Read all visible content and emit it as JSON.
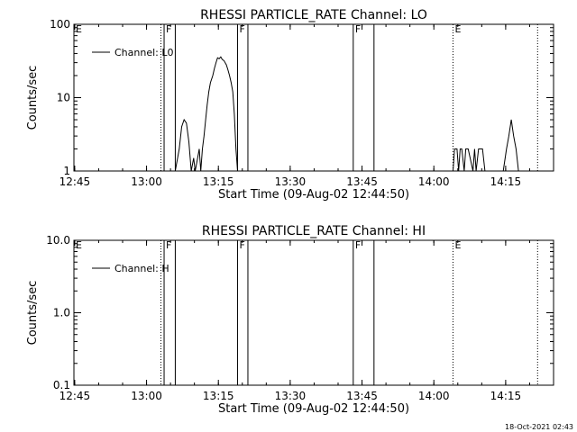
{
  "timestamp": "18-Oct-2021 02:43",
  "chart_data": [
    {
      "type": "line",
      "title": "RHESSI PARTICLE_RATE Channel: LO",
      "xlabel": "Start Time (09-Aug-02 12:44:50)",
      "ylabel": "Counts/sec",
      "y_scale": "log",
      "ylim": [
        1,
        100
      ],
      "y_ticks": [
        1,
        10,
        100
      ],
      "y_tick_labels": [
        "1",
        "10",
        "100"
      ],
      "xlim": [
        "12:44:50",
        "14:25:00"
      ],
      "x_ticks": [
        "12:45",
        "13:00",
        "13:15",
        "13:30",
        "13:45",
        "14:00",
        "14:15"
      ],
      "legend": {
        "label": "Channel: L0",
        "placement": "top-left"
      },
      "flags": [
        {
          "label": "E",
          "time": "12:44:50",
          "style": "dotted"
        },
        {
          "label": "",
          "time": "13:03:00",
          "style": "dotted"
        },
        {
          "label": "F",
          "time": "13:03:40",
          "style": "solid"
        },
        {
          "label": "",
          "time": "13:06:00",
          "style": "solid"
        },
        {
          "label": "F",
          "time": "13:19:00",
          "style": "solid"
        },
        {
          "label": "",
          "time": "13:21:10",
          "style": "solid"
        },
        {
          "label": "F",
          "time": "13:43:10",
          "style": "solid"
        },
        {
          "label": "",
          "time": "13:47:30",
          "style": "solid"
        },
        {
          "label": "E",
          "time": "14:04:00",
          "style": "dotted"
        },
        {
          "label": "",
          "time": "14:21:40",
          "style": "dotted"
        }
      ],
      "series": [
        {
          "name": "Channel: L0",
          "segments": [
            {
              "x": [
                "13:06:00",
                "13:06:50",
                "13:07:20",
                "13:07:50",
                "13:08:20",
                "13:08:50",
                "13:09:20",
                "13:09:50",
                "13:10:10",
                "13:10:40",
                "13:11:00",
                "13:11:20",
                "13:11:40",
                "13:12:00",
                "13:12:20",
                "13:12:40",
                "13:13:00",
                "13:13:20",
                "13:13:50",
                "13:14:10",
                "13:14:30",
                "13:14:50",
                "13:15:10",
                "13:15:30",
                "13:15:50",
                "13:16:10",
                "13:16:40",
                "13:17:00",
                "13:17:20",
                "13:17:40",
                "13:18:00",
                "13:18:20",
                "13:18:40",
                "13:19:00"
              ],
              "y": [
                1,
                2,
                4,
                5,
                4.5,
                2.5,
                1,
                1.5,
                1,
                1.5,
                2,
                1,
                2,
                3,
                5,
                8,
                12,
                16,
                20,
                25,
                30,
                35,
                34,
                36,
                33,
                32,
                28,
                24,
                20,
                16,
                12,
                6,
                2,
                1
              ]
            },
            {
              "x": [
                "14:04:00",
                "14:04:20",
                "14:04:50",
                "14:05:10",
                "14:05:30",
                "14:05:50",
                "14:06:20",
                "14:06:40",
                "14:07:10",
                "14:08:10",
                "14:08:30",
                "14:08:50",
                "14:09:20",
                "14:09:40",
                "14:10:10",
                "14:10:40"
              ],
              "y": [
                1,
                2,
                2,
                1,
                2,
                2,
                1,
                2,
                2,
                1,
                2,
                1,
                2,
                2,
                2,
                1
              ]
            },
            {
              "x": [
                "14:14:30",
                "14:15:10",
                "14:15:40",
                "14:16:10",
                "14:16:40",
                "14:17:10",
                "14:17:40"
              ],
              "y": [
                1,
                2,
                3,
                5,
                3,
                2,
                1
              ]
            }
          ]
        }
      ]
    },
    {
      "type": "line",
      "title": "RHESSI PARTICLE_RATE Channel: HI",
      "xlabel": "Start Time (09-Aug-02 12:44:50)",
      "ylabel": "Counts/sec",
      "y_scale": "log",
      "ylim": [
        0.1,
        10
      ],
      "y_ticks": [
        0.1,
        1,
        10
      ],
      "y_tick_labels": [
        "0.1",
        "1.0",
        "10.0"
      ],
      "xlim": [
        "12:44:50",
        "14:25:00"
      ],
      "x_ticks": [
        "12:45",
        "13:00",
        "13:15",
        "13:30",
        "13:45",
        "14:00",
        "14:15"
      ],
      "legend": {
        "label": "Channel: H",
        "placement": "top-left"
      },
      "flags": [
        {
          "label": "E",
          "time": "12:44:50",
          "style": "dotted"
        },
        {
          "label": "",
          "time": "13:03:00",
          "style": "dotted"
        },
        {
          "label": "F",
          "time": "13:03:40",
          "style": "solid"
        },
        {
          "label": "",
          "time": "13:06:00",
          "style": "solid"
        },
        {
          "label": "F",
          "time": "13:19:00",
          "style": "solid"
        },
        {
          "label": "",
          "time": "13:21:10",
          "style": "solid"
        },
        {
          "label": "F",
          "time": "13:43:10",
          "style": "solid"
        },
        {
          "label": "",
          "time": "13:47:30",
          "style": "solid"
        },
        {
          "label": "E",
          "time": "14:04:00",
          "style": "dotted"
        },
        {
          "label": "",
          "time": "14:21:40",
          "style": "dotted"
        }
      ],
      "series": [
        {
          "name": "Channel: H",
          "segments": []
        }
      ]
    }
  ]
}
